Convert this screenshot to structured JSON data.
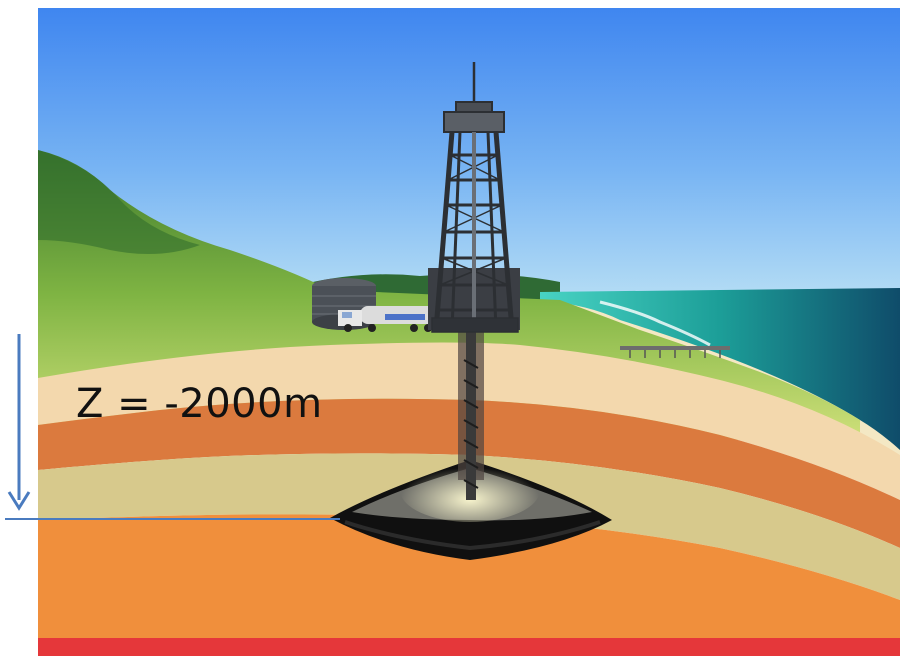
{
  "depth_annotation": {
    "label": "Z = -2000m",
    "arrow_color": "#4a7bbf"
  },
  "scene": {
    "sky_colors": [
      "#4a8ff2",
      "#a9d7f5"
    ],
    "layer_colors": {
      "topsoil": "#f3d8ad",
      "clay": "#db7a3e",
      "sand": "#d7c98c",
      "deep_rock": "#f08f3c",
      "bottom_band": "#e5373a"
    },
    "ocean_color": "#1e9d98",
    "hill_color": "#6fa840",
    "reservoir_color": "#1b1b1b"
  }
}
